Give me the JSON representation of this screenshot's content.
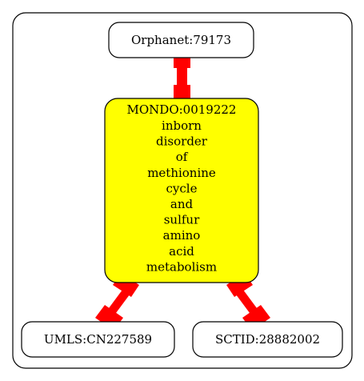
{
  "diagram": {
    "nodes": {
      "orphanet": {
        "label": "Orphanet:79173"
      },
      "mondo": {
        "id_line": "MONDO:0019222",
        "lines": [
          "inborn",
          "disorder",
          "of",
          "methionine",
          "cycle",
          "and",
          "sulfur",
          "amino",
          "acid",
          "metabolism"
        ],
        "fill": "#ffff00"
      },
      "umls": {
        "label": "UMLS:CN227589"
      },
      "sctid": {
        "label": "SCTID:28882002"
      }
    },
    "edge_color": "#ff0000",
    "node_stroke": "#000000"
  }
}
